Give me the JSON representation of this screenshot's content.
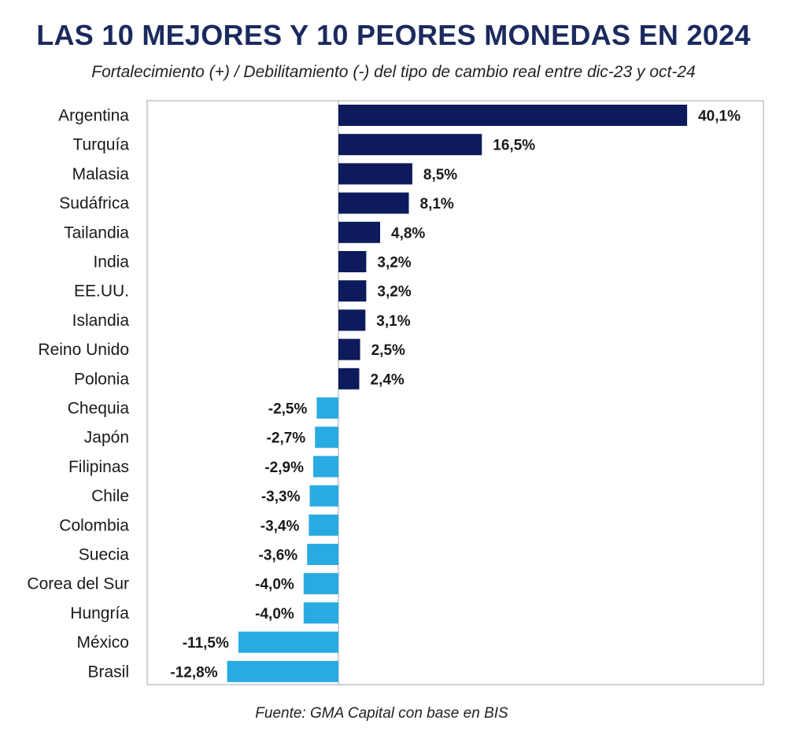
{
  "title": "LAS 10 MEJORES Y 10 PEORES MONEDAS EN 2024",
  "subtitle": "Fortalecimiento (+) / Debilitamiento (-) del tipo de cambio real entre dic-23 y oct-24",
  "source": "Fuente: GMA Capital con base en BIS",
  "colors": {
    "positive": "#0d1b5c",
    "negative": "#29abe2",
    "title": "#1b2a5e"
  },
  "chart_data": {
    "type": "bar",
    "orientation": "horizontal",
    "categories": [
      "Argentina",
      "Turquía",
      "Malasia",
      "Sudáfrica",
      "Tailandia",
      "India",
      "EE.UU.",
      "Islandia",
      "Reino Unido",
      "Polonia",
      "Chequia",
      "Japón",
      "Filipinas",
      "Chile",
      "Colombia",
      "Suecia",
      "Corea del Sur",
      "Hungría",
      "México",
      "Brasil"
    ],
    "values": [
      40.1,
      16.5,
      8.5,
      8.1,
      4.8,
      3.2,
      3.2,
      3.1,
      2.5,
      2.4,
      -2.5,
      -2.7,
      -2.9,
      -3.3,
      -3.4,
      -3.6,
      -4.0,
      -4.0,
      -11.5,
      -12.8
    ],
    "labels": [
      "40,1%",
      "16,5%",
      "8,5%",
      "8,1%",
      "4,8%",
      "3,2%",
      "3,2%",
      "3,1%",
      "2,5%",
      "2,4%",
      "-2,5%",
      "-2,7%",
      "-2,9%",
      "-3,3%",
      "-3,4%",
      "-3,6%",
      "-4,0%",
      "-4,0%",
      "-11,5%",
      "-12,8%"
    ],
    "xlim": [
      -13,
      49
    ],
    "grid": false,
    "legend": "none"
  }
}
